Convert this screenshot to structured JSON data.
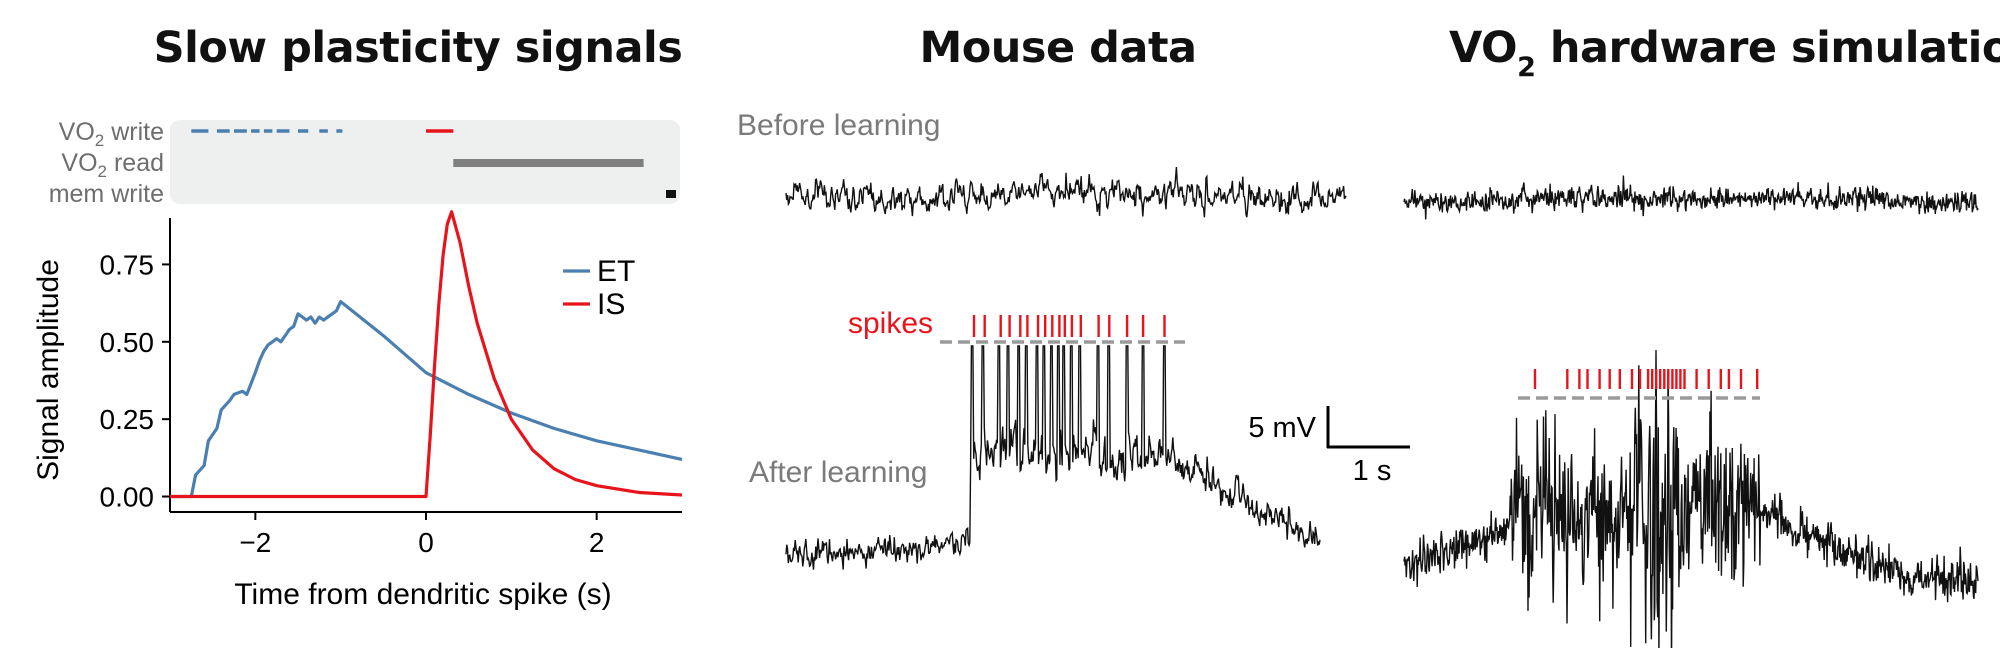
{
  "panels": {
    "left_title": "Slow plasticity signals",
    "middle_title": "Mouse data",
    "right_title_main": "VO",
    "right_title_sub": "2",
    "right_title_rest": " hardware simulation"
  },
  "timeline": {
    "rows": [
      {
        "label_main": "VO",
        "label_sub": "2",
        "label_rest": " write"
      },
      {
        "label_main": "VO",
        "label_sub": "2",
        "label_rest": " read"
      },
      {
        "label_main": "mem write",
        "label_sub": "",
        "label_rest": ""
      }
    ],
    "colors": {
      "write_blue": "#4a7fb0",
      "write_red": "#e8141c",
      "read": "#7f7f7f",
      "mem": "#111111",
      "background": "#eef0ef"
    }
  },
  "chart_data": {
    "type": "line",
    "xlabel": "Time from dendritic spike (s)",
    "ylabel": "Signal amplitude",
    "xlim": [
      -3,
      3
    ],
    "ylim": [
      -0.05,
      0.9
    ],
    "xticks": [
      "−2",
      "0",
      "2"
    ],
    "yticks": [
      "0.00",
      "0.25",
      "0.50",
      "0.75"
    ],
    "legend_position": "top-right",
    "series": [
      {
        "name": "ET",
        "color": "#4a7fb0",
        "x": [
          -3.0,
          -2.75,
          -2.7,
          -2.6,
          -2.55,
          -2.45,
          -2.4,
          -2.3,
          -2.25,
          -2.15,
          -2.1,
          -2.0,
          -1.95,
          -1.9,
          -1.85,
          -1.8,
          -1.75,
          -1.7,
          -1.6,
          -1.55,
          -1.5,
          -1.45,
          -1.4,
          -1.35,
          -1.3,
          -1.25,
          -1.2,
          -1.1,
          -1.05,
          -1.0,
          -0.5,
          0.0,
          0.5,
          1.0,
          1.5,
          2.0,
          2.5,
          3.0
        ],
        "y": [
          0.0,
          0.0,
          0.07,
          0.1,
          0.18,
          0.22,
          0.28,
          0.31,
          0.33,
          0.34,
          0.33,
          0.4,
          0.44,
          0.47,
          0.49,
          0.5,
          0.51,
          0.5,
          0.54,
          0.55,
          0.59,
          0.58,
          0.57,
          0.58,
          0.56,
          0.58,
          0.57,
          0.59,
          0.6,
          0.63,
          0.52,
          0.4,
          0.33,
          0.27,
          0.22,
          0.18,
          0.15,
          0.12
        ]
      },
      {
        "name": "IS",
        "color": "#e8141c",
        "x": [
          -3.0,
          0.0,
          0.05,
          0.1,
          0.15,
          0.2,
          0.25,
          0.3,
          0.4,
          0.5,
          0.6,
          0.8,
          1.0,
          1.25,
          1.5,
          1.75,
          2.0,
          2.5,
          3.0
        ],
        "y": [
          0.0,
          0.0,
          0.2,
          0.42,
          0.62,
          0.78,
          0.88,
          0.92,
          0.82,
          0.68,
          0.56,
          0.38,
          0.25,
          0.15,
          0.09,
          0.055,
          0.035,
          0.013,
          0.005
        ]
      }
    ]
  },
  "traces": {
    "before_label": "Before learning",
    "after_label": "After learning",
    "spikes_label": "spikes",
    "scale_voltage": "5 mV",
    "scale_time": "1 s",
    "mouse_spike_times": [
      0.0,
      0.06,
      0.15,
      0.2,
      0.26,
      0.3,
      0.36,
      0.4,
      0.44,
      0.48,
      0.51,
      0.55,
      0.6,
      0.7,
      0.76,
      0.86,
      0.95,
      1.07
    ],
    "sim_spike_times": [
      0.0,
      0.16,
      0.22,
      0.26,
      0.32,
      0.37,
      0.42,
      0.48,
      0.52,
      0.56,
      0.58,
      0.6,
      0.62,
      0.64,
      0.66,
      0.68,
      0.7,
      0.72,
      0.74,
      0.8,
      0.86,
      0.92,
      0.96,
      1.02,
      1.1
    ]
  }
}
